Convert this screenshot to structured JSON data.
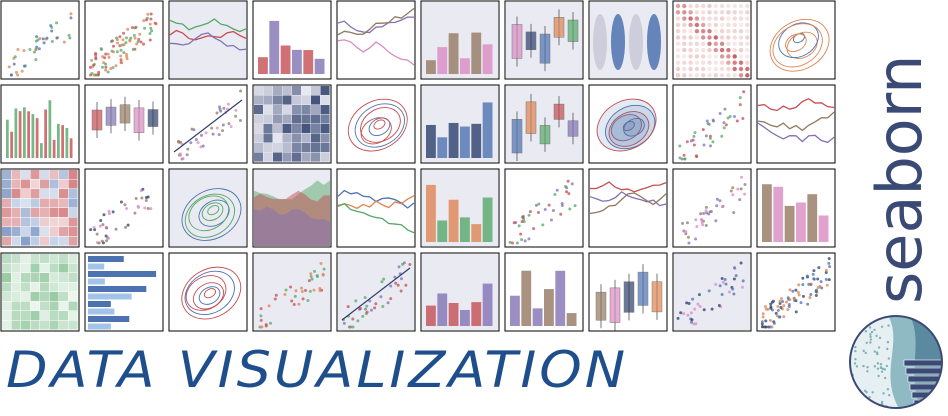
{
  "brand": {
    "wordmark": "seaborn",
    "wordmark_color": "#3b4a75",
    "tagline": "DATA VISUALIZATION",
    "tagline_color": "#1f4e8c"
  },
  "gallery": {
    "rows": 4,
    "columns": 10,
    "frame_color": "#000000",
    "thumbnails": [
      "scatter-icon",
      "hexbin-scatter-icon",
      "timeseries-band-icon",
      "joint-histogram-icon",
      "multi-line-icon",
      "grouped-bar-icon",
      "boxplot-icon",
      "split-violin-icon",
      "correlation-dot-matrix-icon",
      "joint-kde-icon",
      "stacked-histogram-icon",
      "boxen-plot-icon",
      "strip-plot-icon",
      "heatmap-2d-hist-icon",
      "kde-contour-icon",
      "ridge-plot-icon",
      "letter-value-plot-icon",
      "density-scatter-icon",
      "regression-band-icon",
      "facet-lines-icon",
      "diverging-heatmap-icon",
      "marginal-scatter-icon",
      "bivariate-kde-icon",
      "stacked-area-icon",
      "ecdf-icon",
      "regression-scatter-icon",
      "facet-polar-icon",
      "paired-lines-icon",
      "dot-plot-icon",
      "bar-facet-icon",
      "kde-heatmap-icon",
      "horizontal-bar-icon",
      "error-bar-icon",
      "polar-scatter-icon",
      "regression-line-icon",
      "residual-scatter-icon",
      "bubble-scatter-icon",
      "swarm-plot-icon",
      "pair-grid-icon",
      "dense-scatter-icon"
    ],
    "palette": {
      "blue": "#4c72b0",
      "orange": "#dd8452",
      "green": "#55a868",
      "red": "#c44e52",
      "purple": "#8172b3",
      "brown": "#937860",
      "pink": "#da8bc3",
      "navy": "#2c3e6b"
    }
  },
  "logo": {
    "name": "seaborn-logo-icon"
  }
}
